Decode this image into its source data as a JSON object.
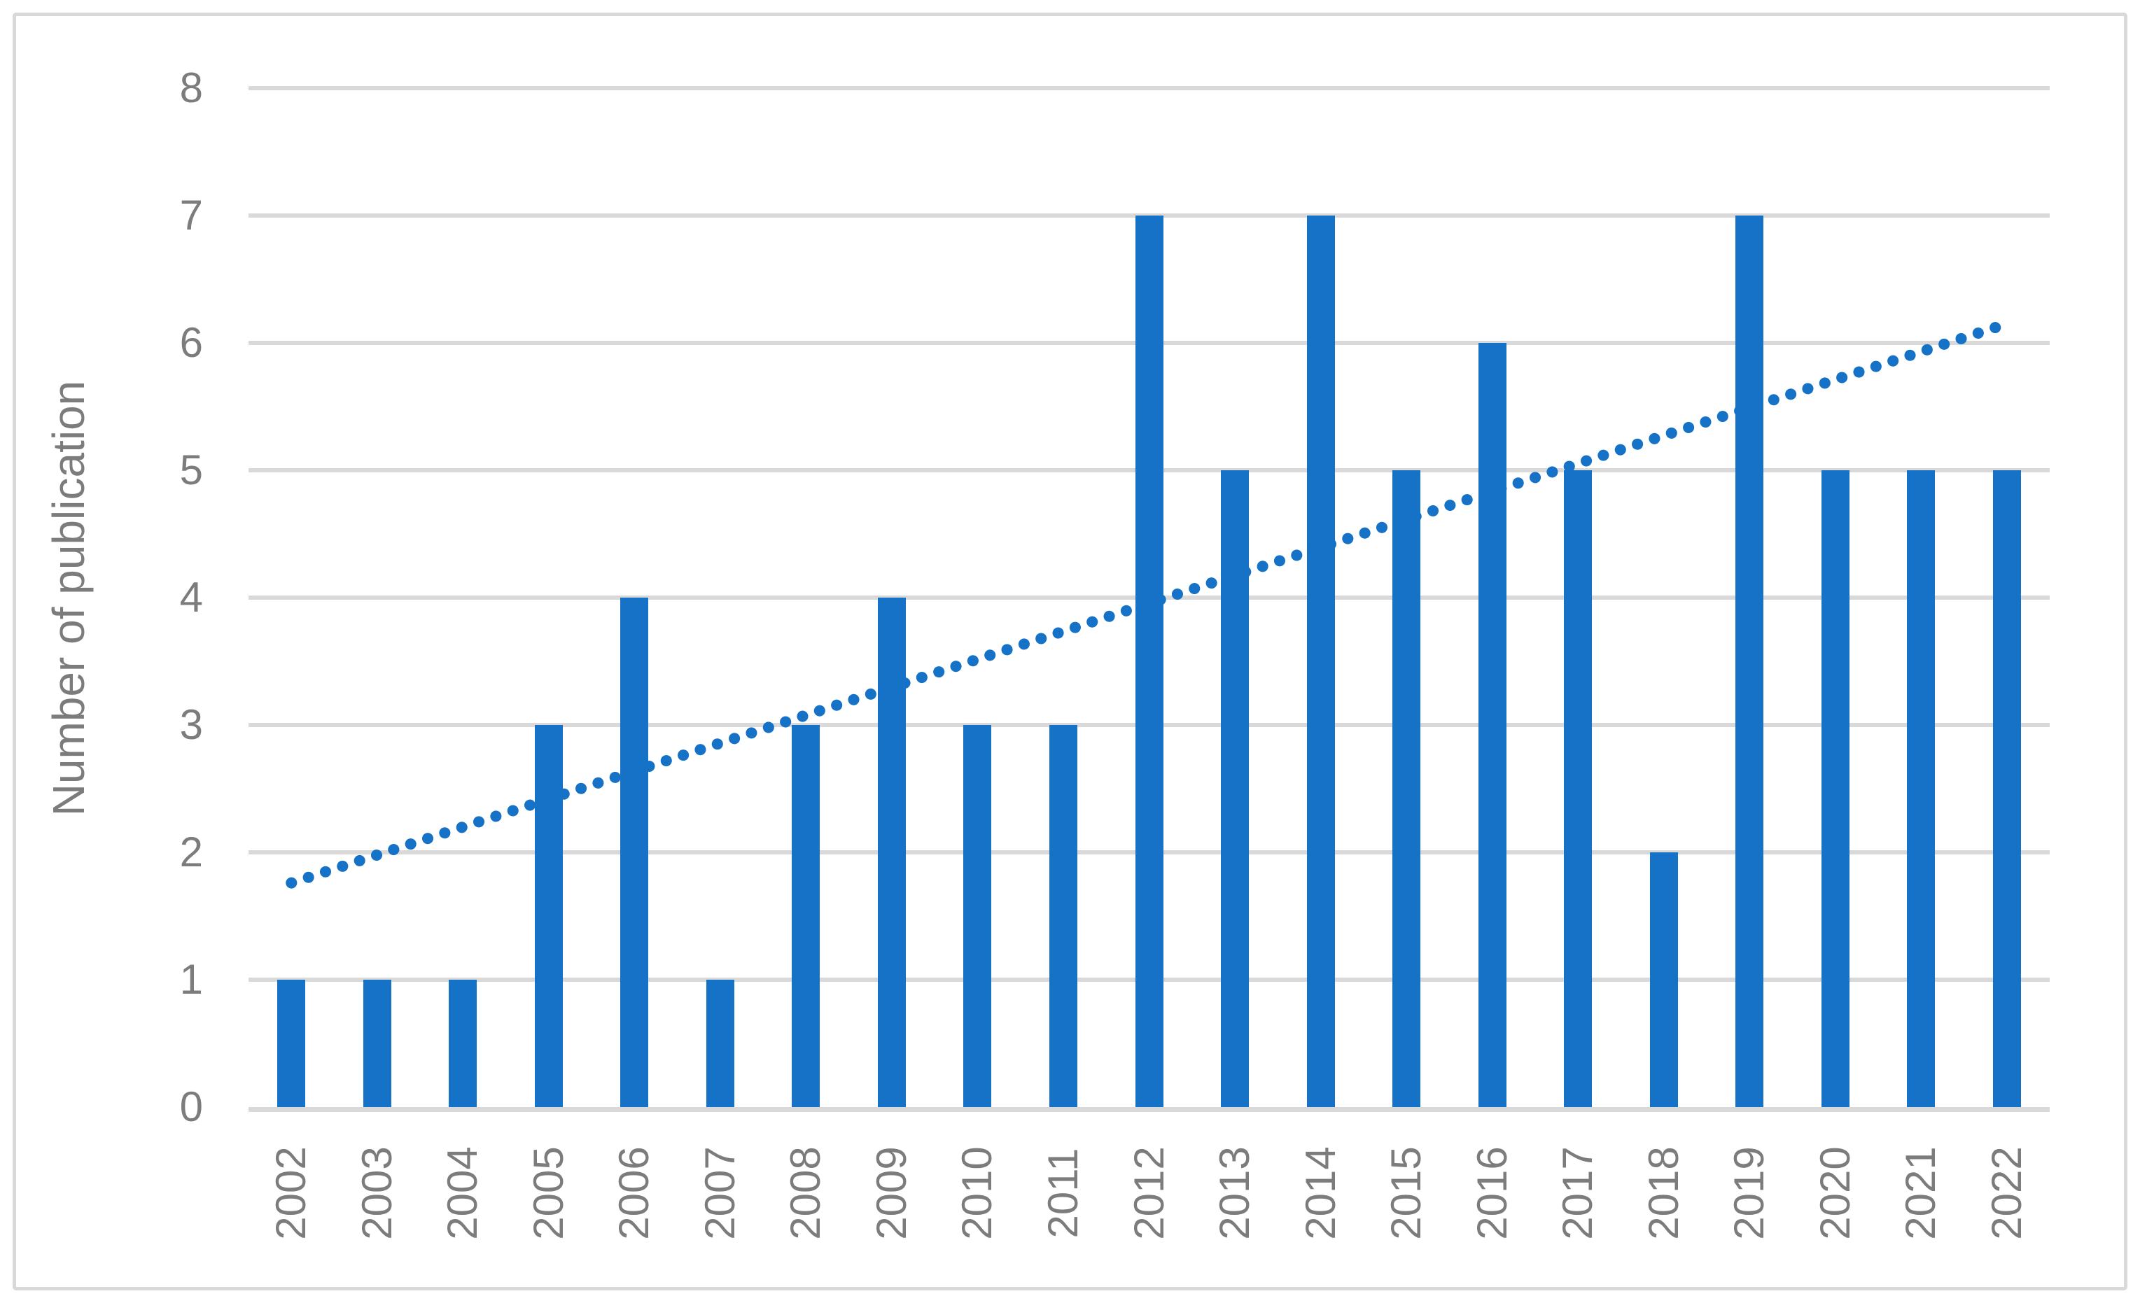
{
  "chart_data": {
    "type": "bar",
    "title": "",
    "categories": [
      "2002",
      "2003",
      "2004",
      "2005",
      "2006",
      "2007",
      "2008",
      "2009",
      "2010",
      "2011",
      "2012",
      "2013",
      "2014",
      "2015",
      "2016",
      "2017",
      "2018",
      "2019",
      "2020",
      "2021",
      "2022"
    ],
    "values": [
      1,
      1,
      1,
      3,
      4,
      1,
      3,
      4,
      3,
      3,
      7,
      5,
      7,
      5,
      6,
      5,
      2,
      7,
      5,
      5,
      5
    ],
    "xlabel": "",
    "ylabel": "Number of publication",
    "ylim": [
      0,
      8
    ],
    "yticks": [
      0,
      1,
      2,
      3,
      4,
      5,
      6,
      7,
      8
    ],
    "grid": true,
    "legend_position": "none",
    "trendline": {
      "type": "linear",
      "style": "dotted",
      "start_value": 1.76,
      "end_value": 6.15
    },
    "colors": {
      "bar": "#1572c6",
      "trendline": "#1572c6",
      "gridline": "#d9d9d9",
      "axis_line": "#d9d9d9",
      "text": "#7c7c7c",
      "frame_border": "#d9d9d9",
      "background": "#ffffff"
    }
  }
}
